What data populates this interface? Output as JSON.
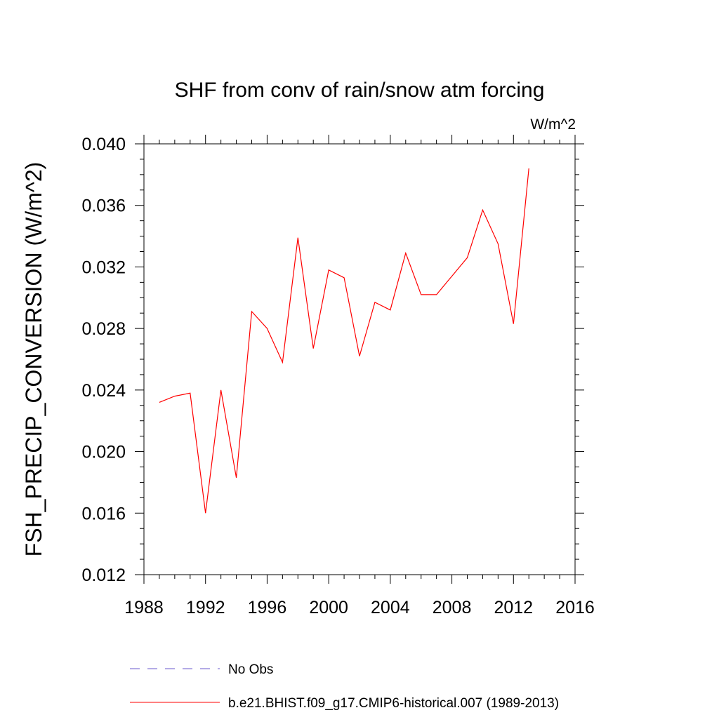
{
  "chart_data": {
    "type": "line",
    "title": "SHF from conv of rain/snow atm forcing",
    "units_label": "W/m^2",
    "xlabel": "",
    "ylabel": "FSH_PRECIP_CONVERSION  (W/m^2)",
    "xlim": [
      1988,
      2016
    ],
    "ylim": [
      0.012,
      0.04
    ],
    "x_ticks": [
      1988,
      1992,
      1996,
      2000,
      2004,
      2008,
      2012,
      2016
    ],
    "x_tick_labels": [
      "1988",
      "1992",
      "1996",
      "2000",
      "2004",
      "2008",
      "2012",
      "2016"
    ],
    "y_ticks": [
      0.012,
      0.016,
      0.02,
      0.024,
      0.028,
      0.032,
      0.036,
      0.04
    ],
    "y_tick_labels": [
      "0.012",
      "0.016",
      "0.020",
      "0.024",
      "0.028",
      "0.032",
      "0.036",
      "0.040"
    ],
    "grid": false,
    "legend_position": "bottom",
    "series": [
      {
        "name": "b.e21.BHIST.f09_g17.CMIP6-historical.007 (1989-2013)",
        "color": "#ff0000",
        "style": "solid",
        "x": [
          1989,
          1990,
          1991,
          1992,
          1993,
          1994,
          1995,
          1996,
          1997,
          1998,
          1999,
          2000,
          2001,
          2002,
          2003,
          2004,
          2005,
          2006,
          2007,
          2008,
          2009,
          2010,
          2011,
          2012,
          2013
        ],
        "y": [
          0.0232,
          0.0236,
          0.0238,
          0.016,
          0.024,
          0.0183,
          0.0291,
          0.028,
          0.0258,
          0.0339,
          0.0267,
          0.0318,
          0.0313,
          0.0262,
          0.0297,
          0.0292,
          0.0329,
          0.0302,
          0.0302,
          0.0314,
          0.0326,
          0.0357,
          0.0335,
          0.0283,
          0.0384
        ]
      }
    ],
    "legend": [
      {
        "label": "No Obs",
        "color": "#6a5acd",
        "style": "dashed"
      },
      {
        "label": "b.e21.BHIST.f09_g17.CMIP6-historical.007 (1989-2013)",
        "color": "#ff0000",
        "style": "solid"
      }
    ]
  }
}
